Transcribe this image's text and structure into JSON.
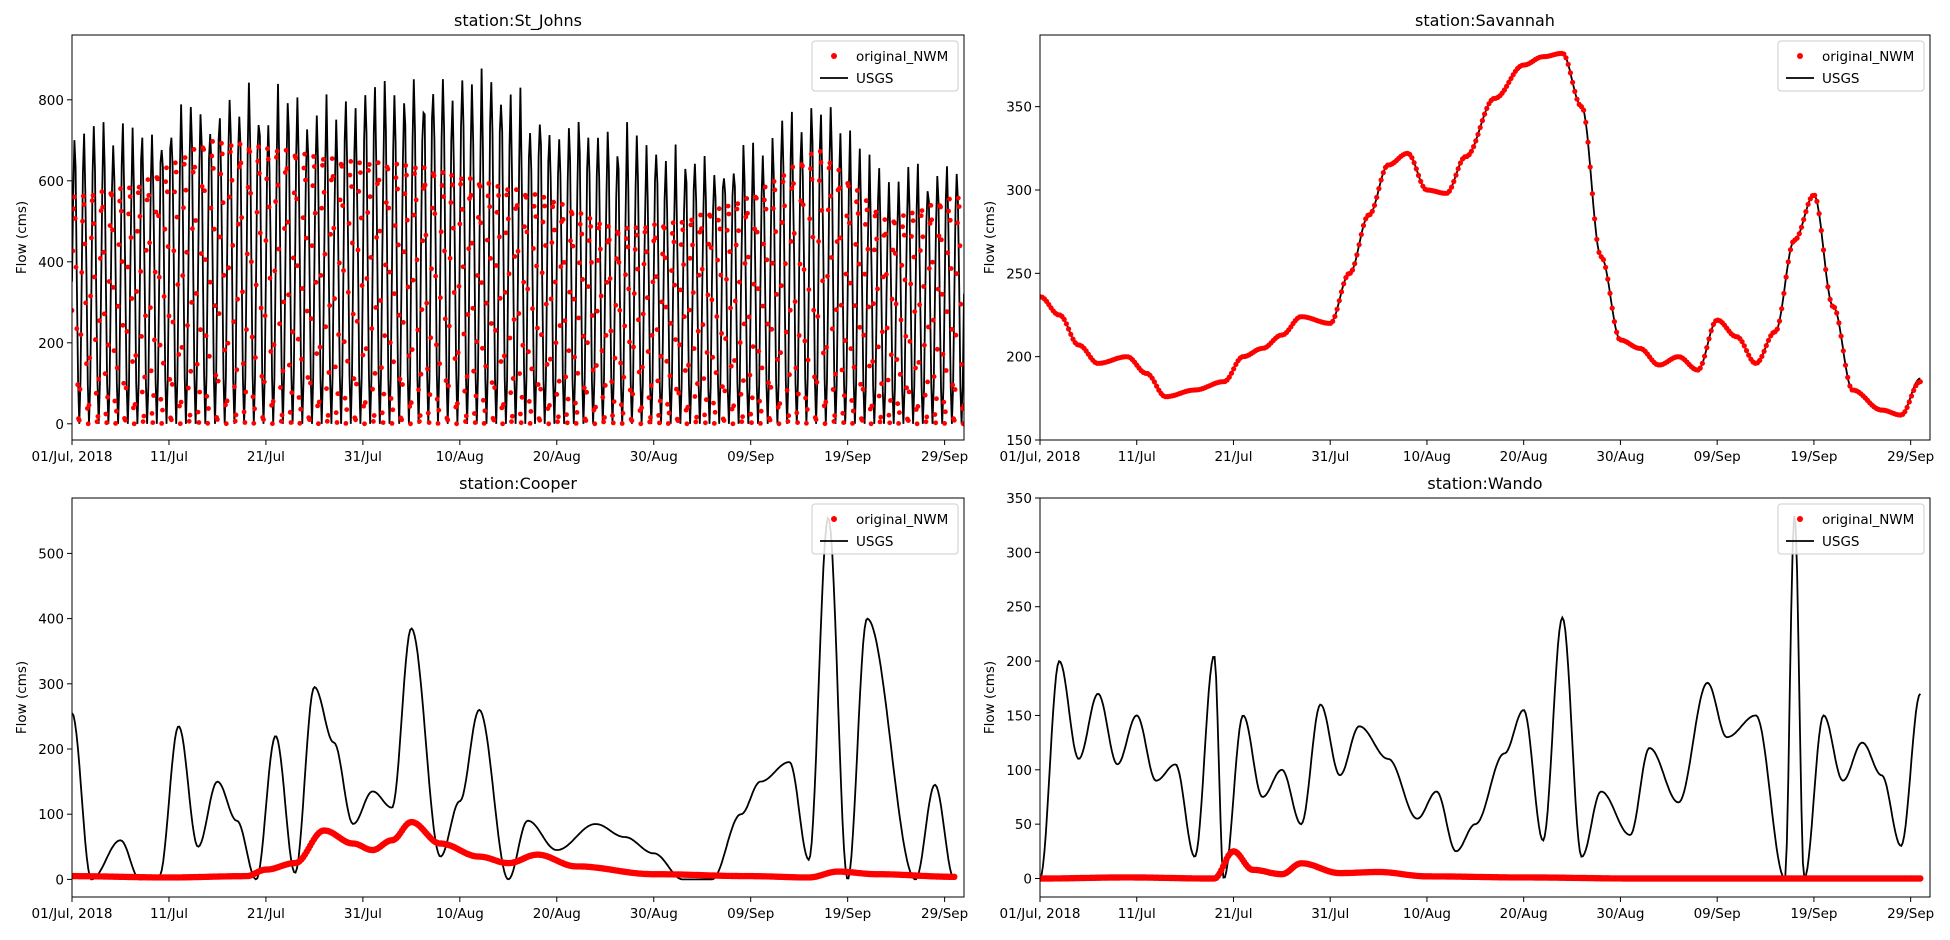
{
  "chart_data": [
    {
      "type": "line",
      "title": "station:St_Johns",
      "xlabel": "",
      "ylabel": "Flow (cms)",
      "x_range": [
        "2018-07-01",
        "2018-10-01"
      ],
      "xticks": [
        "01/Jul, 2018",
        "11/Jul",
        "21/Jul",
        "31/Jul",
        "10/Aug",
        "20/Aug",
        "30/Aug",
        "09/Sep",
        "19/Sep",
        "29/Sep"
      ],
      "ylim": [
        -40,
        960
      ],
      "yticks": [
        0,
        200,
        400,
        600,
        800
      ],
      "grid": false,
      "legend": "top-right",
      "series": [
        {
          "name": "original_NWM",
          "style": "points",
          "color": "#ff0000",
          "x": [
            "2018-07-01",
            "2018-07-08",
            "2018-07-15",
            "2018-07-22",
            "2018-07-29",
            "2018-08-05",
            "2018-08-12",
            "2018-08-19",
            "2018-08-26",
            "2018-09-02",
            "2018-09-09",
            "2018-09-16",
            "2018-09-23",
            "2018-09-30"
          ],
          "values": [
            560,
            590,
            700,
            680,
            650,
            640,
            600,
            560,
            480,
            500,
            560,
            680,
            500,
            560
          ]
        },
        {
          "name": "USGS",
          "style": "line",
          "color": "#000000",
          "x": [
            "2018-07-01",
            "2018-07-08",
            "2018-07-15",
            "2018-07-22",
            "2018-07-29",
            "2018-08-05",
            "2018-08-12",
            "2018-08-19",
            "2018-08-26",
            "2018-09-02",
            "2018-09-09",
            "2018-09-16",
            "2018-09-23",
            "2018-09-30"
          ],
          "values": [
            740,
            770,
            840,
            850,
            820,
            900,
            880,
            830,
            760,
            700,
            700,
            830,
            620,
            690
          ]
        }
      ]
    },
    {
      "type": "line",
      "title": "station:Savannah",
      "xlabel": "",
      "ylabel": "Flow (cms)",
      "x_range": [
        "2018-07-01",
        "2018-10-01"
      ],
      "xticks": [
        "01/Jul, 2018",
        "11/Jul",
        "21/Jul",
        "31/Jul",
        "10/Aug",
        "20/Aug",
        "30/Aug",
        "09/Sep",
        "19/Sep",
        "29/Sep"
      ],
      "ylim": [
        150,
        393
      ],
      "yticks": [
        150,
        200,
        250,
        300,
        350
      ],
      "grid": false,
      "legend": "top-right",
      "series": [
        {
          "name": "original_NWM",
          "style": "points",
          "color": "#ff0000",
          "x": [
            "2018-07-01",
            "2018-07-03",
            "2018-07-05",
            "2018-07-07",
            "2018-07-10",
            "2018-07-12",
            "2018-07-14",
            "2018-07-17",
            "2018-07-20",
            "2018-07-22",
            "2018-07-24",
            "2018-07-26",
            "2018-07-28",
            "2018-07-31",
            "2018-08-02",
            "2018-08-04",
            "2018-08-06",
            "2018-08-08",
            "2018-08-10",
            "2018-08-12",
            "2018-08-14",
            "2018-08-17",
            "2018-08-20",
            "2018-08-22",
            "2018-08-24",
            "2018-08-26",
            "2018-08-28",
            "2018-08-30",
            "2018-09-01",
            "2018-09-03",
            "2018-09-05",
            "2018-09-07",
            "2018-09-09",
            "2018-09-11",
            "2018-09-13",
            "2018-09-15",
            "2018-09-17",
            "2018-09-19",
            "2018-09-21",
            "2018-09-23",
            "2018-09-26",
            "2018-09-28",
            "2018-09-30"
          ],
          "values": [
            236,
            225,
            207,
            196,
            200,
            190,
            176,
            180,
            185,
            200,
            205,
            213,
            224,
            220,
            250,
            285,
            315,
            322,
            300,
            298,
            320,
            355,
            375,
            380,
            382,
            350,
            260,
            210,
            205,
            195,
            200,
            192,
            222,
            212,
            196,
            215,
            270,
            297,
            230,
            180,
            168,
            165,
            185
          ]
        },
        {
          "name": "USGS",
          "style": "line",
          "color": "#000000",
          "x": [
            "2018-07-01",
            "2018-07-03",
            "2018-07-05",
            "2018-07-07",
            "2018-07-10",
            "2018-07-12",
            "2018-07-14",
            "2018-07-17",
            "2018-07-20",
            "2018-07-22",
            "2018-07-24",
            "2018-07-26",
            "2018-07-28",
            "2018-07-31",
            "2018-08-02",
            "2018-08-04",
            "2018-08-06",
            "2018-08-08",
            "2018-08-10",
            "2018-08-12",
            "2018-08-14",
            "2018-08-17",
            "2018-08-20",
            "2018-08-22",
            "2018-08-24",
            "2018-08-26",
            "2018-08-28",
            "2018-08-30",
            "2018-09-01",
            "2018-09-03",
            "2018-09-05",
            "2018-09-07",
            "2018-09-09",
            "2018-09-11",
            "2018-09-13",
            "2018-09-15",
            "2018-09-17",
            "2018-09-19",
            "2018-09-21",
            "2018-09-23",
            "2018-09-26",
            "2018-09-28",
            "2018-09-30"
          ],
          "values": [
            236,
            225,
            207,
            196,
            200,
            190,
            176,
            180,
            185,
            200,
            205,
            213,
            224,
            220,
            250,
            285,
            315,
            322,
            300,
            298,
            320,
            355,
            375,
            380,
            382,
            350,
            260,
            210,
            205,
            195,
            200,
            192,
            222,
            212,
            196,
            215,
            270,
            297,
            230,
            180,
            168,
            165,
            187
          ]
        }
      ]
    },
    {
      "type": "line",
      "title": "station:Cooper",
      "xlabel": "",
      "ylabel": "Flow (cms)",
      "x_range": [
        "2018-07-01",
        "2018-10-01"
      ],
      "xticks": [
        "01/Jul, 2018",
        "11/Jul",
        "21/Jul",
        "31/Jul",
        "10/Aug",
        "20/Aug",
        "30/Aug",
        "09/Sep",
        "19/Sep",
        "29/Sep"
      ],
      "ylim": [
        -27,
        585
      ],
      "yticks": [
        0,
        100,
        200,
        300,
        400,
        500
      ],
      "grid": false,
      "legend": "top-right",
      "series": [
        {
          "name": "original_NWM",
          "style": "points",
          "color": "#ff0000",
          "x": [
            "2018-07-01",
            "2018-07-11",
            "2018-07-19",
            "2018-07-21",
            "2018-07-24",
            "2018-07-27",
            "2018-07-30",
            "2018-08-01",
            "2018-08-03",
            "2018-08-05",
            "2018-08-08",
            "2018-08-12",
            "2018-08-15",
            "2018-08-18",
            "2018-08-22",
            "2018-08-30",
            "2018-09-09",
            "2018-09-15",
            "2018-09-18",
            "2018-09-22",
            "2018-09-30"
          ],
          "values": [
            5,
            3,
            5,
            15,
            25,
            75,
            55,
            45,
            60,
            88,
            55,
            35,
            25,
            38,
            20,
            8,
            5,
            3,
            12,
            8,
            4
          ]
        },
        {
          "name": "USGS",
          "style": "line",
          "color": "#000000",
          "x": [
            "2018-07-01",
            "2018-07-03",
            "2018-07-06",
            "2018-07-08",
            "2018-07-10",
            "2018-07-12",
            "2018-07-14",
            "2018-07-16",
            "2018-07-18",
            "2018-07-20",
            "2018-07-22",
            "2018-07-24",
            "2018-07-26",
            "2018-07-28",
            "2018-07-30",
            "2018-08-01",
            "2018-08-03",
            "2018-08-05",
            "2018-08-08",
            "2018-08-10",
            "2018-08-12",
            "2018-08-15",
            "2018-08-17",
            "2018-08-20",
            "2018-08-24",
            "2018-08-27",
            "2018-08-30",
            "2018-09-02",
            "2018-09-05",
            "2018-09-08",
            "2018-09-10",
            "2018-09-13",
            "2018-09-15",
            "2018-09-17",
            "2018-09-19",
            "2018-09-21",
            "2018-09-26",
            "2018-09-28",
            "2018-09-30"
          ],
          "values": [
            255,
            0,
            60,
            0,
            5,
            235,
            50,
            150,
            90,
            0,
            220,
            10,
            295,
            210,
            85,
            135,
            110,
            385,
            35,
            120,
            260,
            0,
            90,
            45,
            85,
            65,
            40,
            0,
            0,
            100,
            150,
            180,
            30,
            555,
            0,
            400,
            0,
            145,
            0
          ]
        }
      ]
    },
    {
      "type": "line",
      "title": "station:Wando",
      "xlabel": "",
      "ylabel": "Flow (cms)",
      "x_range": [
        "2018-07-01",
        "2018-10-01"
      ],
      "xticks": [
        "01/Jul, 2018",
        "11/Jul",
        "21/Jul",
        "31/Jul",
        "10/Aug",
        "20/Aug",
        "30/Aug",
        "09/Sep",
        "19/Sep",
        "29/Sep"
      ],
      "ylim": [
        -17,
        350
      ],
      "yticks": [
        0,
        50,
        100,
        150,
        200,
        250,
        300,
        350
      ],
      "grid": false,
      "legend": "top-right",
      "series": [
        {
          "name": "original_NWM",
          "style": "points",
          "color": "#ff0000",
          "x": [
            "2018-07-01",
            "2018-07-10",
            "2018-07-19",
            "2018-07-21",
            "2018-07-23",
            "2018-07-26",
            "2018-07-28",
            "2018-08-01",
            "2018-08-05",
            "2018-08-10",
            "2018-08-20",
            "2018-09-01",
            "2018-09-15",
            "2018-09-30"
          ],
          "values": [
            0,
            1,
            0,
            25,
            8,
            4,
            14,
            5,
            6,
            2,
            1,
            0,
            0,
            0
          ]
        },
        {
          "name": "USGS",
          "style": "line",
          "color": "#000000",
          "x": [
            "2018-07-01",
            "2018-07-03",
            "2018-07-05",
            "2018-07-07",
            "2018-07-09",
            "2018-07-11",
            "2018-07-13",
            "2018-07-15",
            "2018-07-17",
            "2018-07-19",
            "2018-07-20",
            "2018-07-22",
            "2018-07-24",
            "2018-07-26",
            "2018-07-28",
            "2018-07-30",
            "2018-08-01",
            "2018-08-03",
            "2018-08-06",
            "2018-08-09",
            "2018-08-11",
            "2018-08-13",
            "2018-08-15",
            "2018-08-18",
            "2018-08-20",
            "2018-08-22",
            "2018-08-24",
            "2018-08-26",
            "2018-08-28",
            "2018-08-31",
            "2018-09-02",
            "2018-09-05",
            "2018-09-08",
            "2018-09-10",
            "2018-09-13",
            "2018-09-16",
            "2018-09-17",
            "2018-09-18",
            "2018-09-20",
            "2018-09-22",
            "2018-09-24",
            "2018-09-26",
            "2018-09-28",
            "2018-09-30"
          ],
          "values": [
            0,
            200,
            110,
            170,
            105,
            150,
            90,
            105,
            20,
            205,
            0,
            150,
            75,
            100,
            50,
            160,
            95,
            140,
            110,
            55,
            80,
            25,
            50,
            115,
            155,
            35,
            240,
            20,
            80,
            40,
            120,
            70,
            180,
            130,
            150,
            0,
            335,
            0,
            150,
            90,
            125,
            95,
            30,
            170
          ]
        }
      ]
    }
  ]
}
